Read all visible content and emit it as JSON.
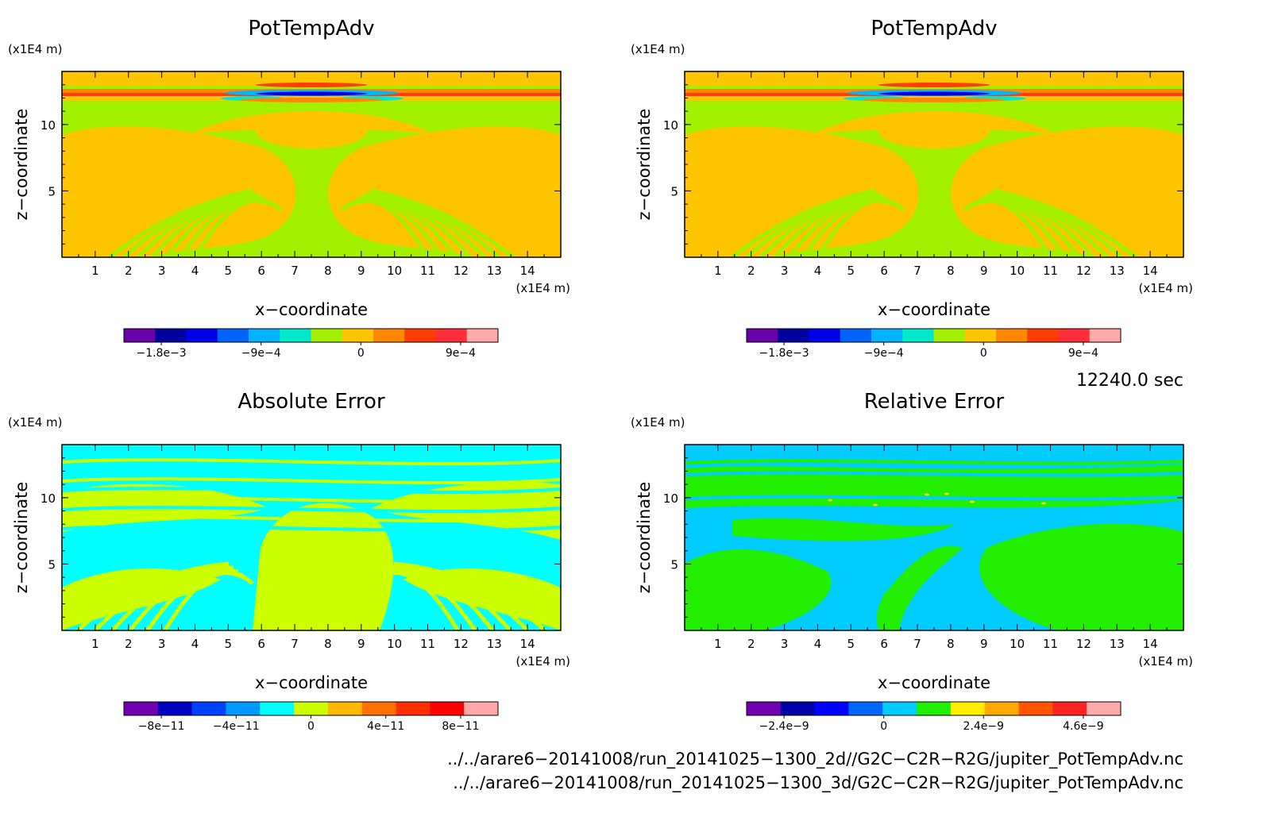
{
  "chart_data": [
    {
      "type": "heatmap",
      "title": "PotTempAdv",
      "xlabel": "x−coordinate",
      "ylabel": "z−coordinate",
      "x_unit": "(x1E4 m)",
      "y_unit": "(x1E4 m)",
      "xlim": [
        0,
        15
      ],
      "ylim": [
        0,
        14
      ],
      "x_ticks": [
        "1",
        "2",
        "3",
        "4",
        "5",
        "6",
        "7",
        "8",
        "9",
        "10",
        "11",
        "12",
        "13",
        "14"
      ],
      "y_ticks": [
        "5",
        "10"
      ],
      "colorbar": {
        "colors": [
          "#6a00aa",
          "#00009e",
          "#0000e8",
          "#0063ff",
          "#00b4ff",
          "#00e8cc",
          "#a2f000",
          "#ffc400",
          "#ff8800",
          "#ff3d00",
          "#ff2e38",
          "#ffaaaa"
        ],
        "tick_labels": [
          "−1.8e−3",
          "−9e−4",
          "0",
          "9e−4"
        ]
      }
    },
    {
      "type": "heatmap",
      "title": "PotTempAdv",
      "xlabel": "x−coordinate",
      "ylabel": "z−coordinate",
      "x_unit": "(x1E4 m)",
      "y_unit": "(x1E4 m)",
      "xlim": [
        0,
        15
      ],
      "ylim": [
        0,
        14
      ],
      "x_ticks": [
        "1",
        "2",
        "3",
        "4",
        "5",
        "6",
        "7",
        "8",
        "9",
        "10",
        "11",
        "12",
        "13",
        "14"
      ],
      "y_ticks": [
        "5",
        "10"
      ],
      "colorbar": {
        "colors": [
          "#6a00aa",
          "#00009e",
          "#0000e8",
          "#0063ff",
          "#00b4ff",
          "#00e8cc",
          "#a2f000",
          "#ffc400",
          "#ff8800",
          "#ff3d00",
          "#ff2e38",
          "#ffaaaa"
        ],
        "tick_labels": [
          "−1.8e−3",
          "−9e−4",
          "0",
          "9e−4"
        ]
      }
    },
    {
      "type": "heatmap",
      "title": "Absolute Error",
      "xlabel": "x−coordinate",
      "ylabel": "z−coordinate",
      "x_unit": "(x1E4 m)",
      "y_unit": "(x1E4 m)",
      "xlim": [
        0,
        15
      ],
      "ylim": [
        0,
        14
      ],
      "x_ticks": [
        "1",
        "2",
        "3",
        "4",
        "5",
        "6",
        "7",
        "8",
        "9",
        "10",
        "11",
        "12",
        "13",
        "14"
      ],
      "y_ticks": [
        "5",
        "10"
      ],
      "colorbar": {
        "colors": [
          "#7000b0",
          "#0000c0",
          "#0040ff",
          "#0099ff",
          "#00ffff",
          "#ccff00",
          "#ffb800",
          "#ff7000",
          "#ff3000",
          "#ff0000",
          "#ffa8a8"
        ],
        "tick_labels": [
          "−8e−11",
          "−4e−11",
          "0",
          "4e−11",
          "8e−11"
        ]
      }
    },
    {
      "type": "heatmap",
      "title": "Relative Error",
      "xlabel": "x−coordinate",
      "ylabel": "z−coordinate",
      "x_unit": "(x1E4 m)",
      "y_unit": "(x1E4 m)",
      "xlim": [
        0,
        15
      ],
      "ylim": [
        0,
        14
      ],
      "x_ticks": [
        "1",
        "2",
        "3",
        "4",
        "5",
        "6",
        "7",
        "8",
        "9",
        "10",
        "11",
        "12",
        "13",
        "14"
      ],
      "y_ticks": [
        "5",
        "10"
      ],
      "colorbar": {
        "colors": [
          "#7000b0",
          "#0000aa",
          "#0000ff",
          "#0066ff",
          "#00ccff",
          "#22ee00",
          "#ffee00",
          "#ffaa00",
          "#ff5500",
          "#ff2222",
          "#ffaaaa"
        ],
        "tick_labels": [
          "−2.4e−9",
          "0",
          "2.4e−9",
          "4.6e−9"
        ]
      }
    }
  ],
  "time_label": "12240.0 sec",
  "footer": [
    "../../arare6−20141008/run_20141025−1300_2d//G2C−C2R−R2G/jupiter_PotTempAdv.nc",
    "../../arare6−20141008/run_20141025−1300_3d/G2C−C2R−R2G/jupiter_PotTempAdv.nc"
  ]
}
